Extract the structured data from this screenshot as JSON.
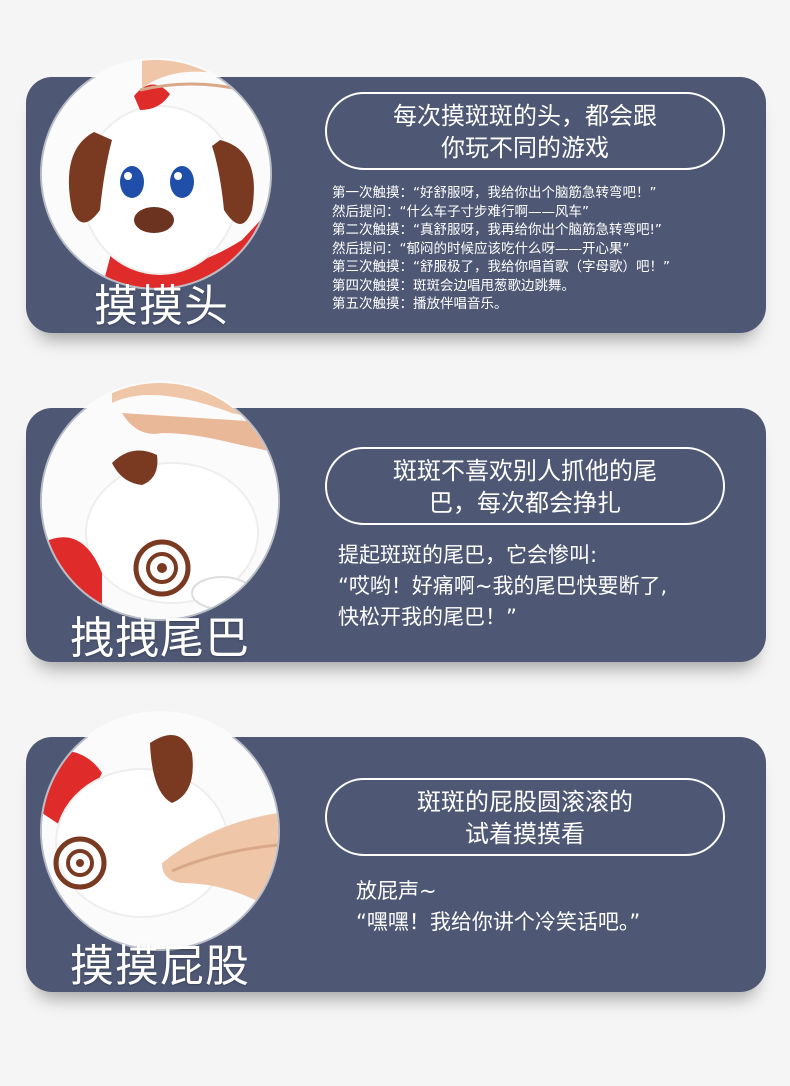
{
  "panels": [
    {
      "action": "摸摸头",
      "headline": [
        "每次摸斑斑的头，都会跟",
        "你玩不同的游戏"
      ],
      "lines": [
        "第一次触摸：“好舒服呀，我给你出个脑筋急转弯吧！”",
        "然后提问：“什么车子寸步难行啊——风车”",
        "第二次触摸：“真舒服呀，我再给你出个脑筋急转弯吧!”",
        "然后提问：“郁闷的时候应该吃什么呀——开心果”",
        "第三次触摸：“舒服极了，我给你唱首歌（字母歌）吧！”",
        "第四次触摸：斑斑会边唱甩葱歌边跳舞。",
        "第五次触摸：播放伴唱音乐。"
      ],
      "image_icon": "hand-patting-puppy-head-icon"
    },
    {
      "action": "拽拽尾巴",
      "headline": [
        "斑斑不喜欢别人抓他的尾",
        "巴，每次都会挣扎"
      ],
      "lines": [
        "提起斑斑的尾巴，它会惨叫:",
        "“哎哟！好痛啊~我的尾巴快要断了,",
        "快松开我的尾巴！”"
      ],
      "image_icon": "hand-pulling-puppy-tail-icon"
    },
    {
      "action": "摸摸屁股",
      "headline": [
        "斑斑的屁股圆滚滚的",
        "试着摸摸看"
      ],
      "lines": [
        "放屁声~",
        "“嘿嘿！我给你讲个冷笑话吧。”"
      ],
      "image_icon": "hand-touching-puppy-bottom-icon"
    }
  ],
  "colors": {
    "panel": "#4e5874",
    "page_background": "#f5f5f5",
    "puppy_ear": "#7a3a22",
    "scarf": "#e02b2b"
  }
}
